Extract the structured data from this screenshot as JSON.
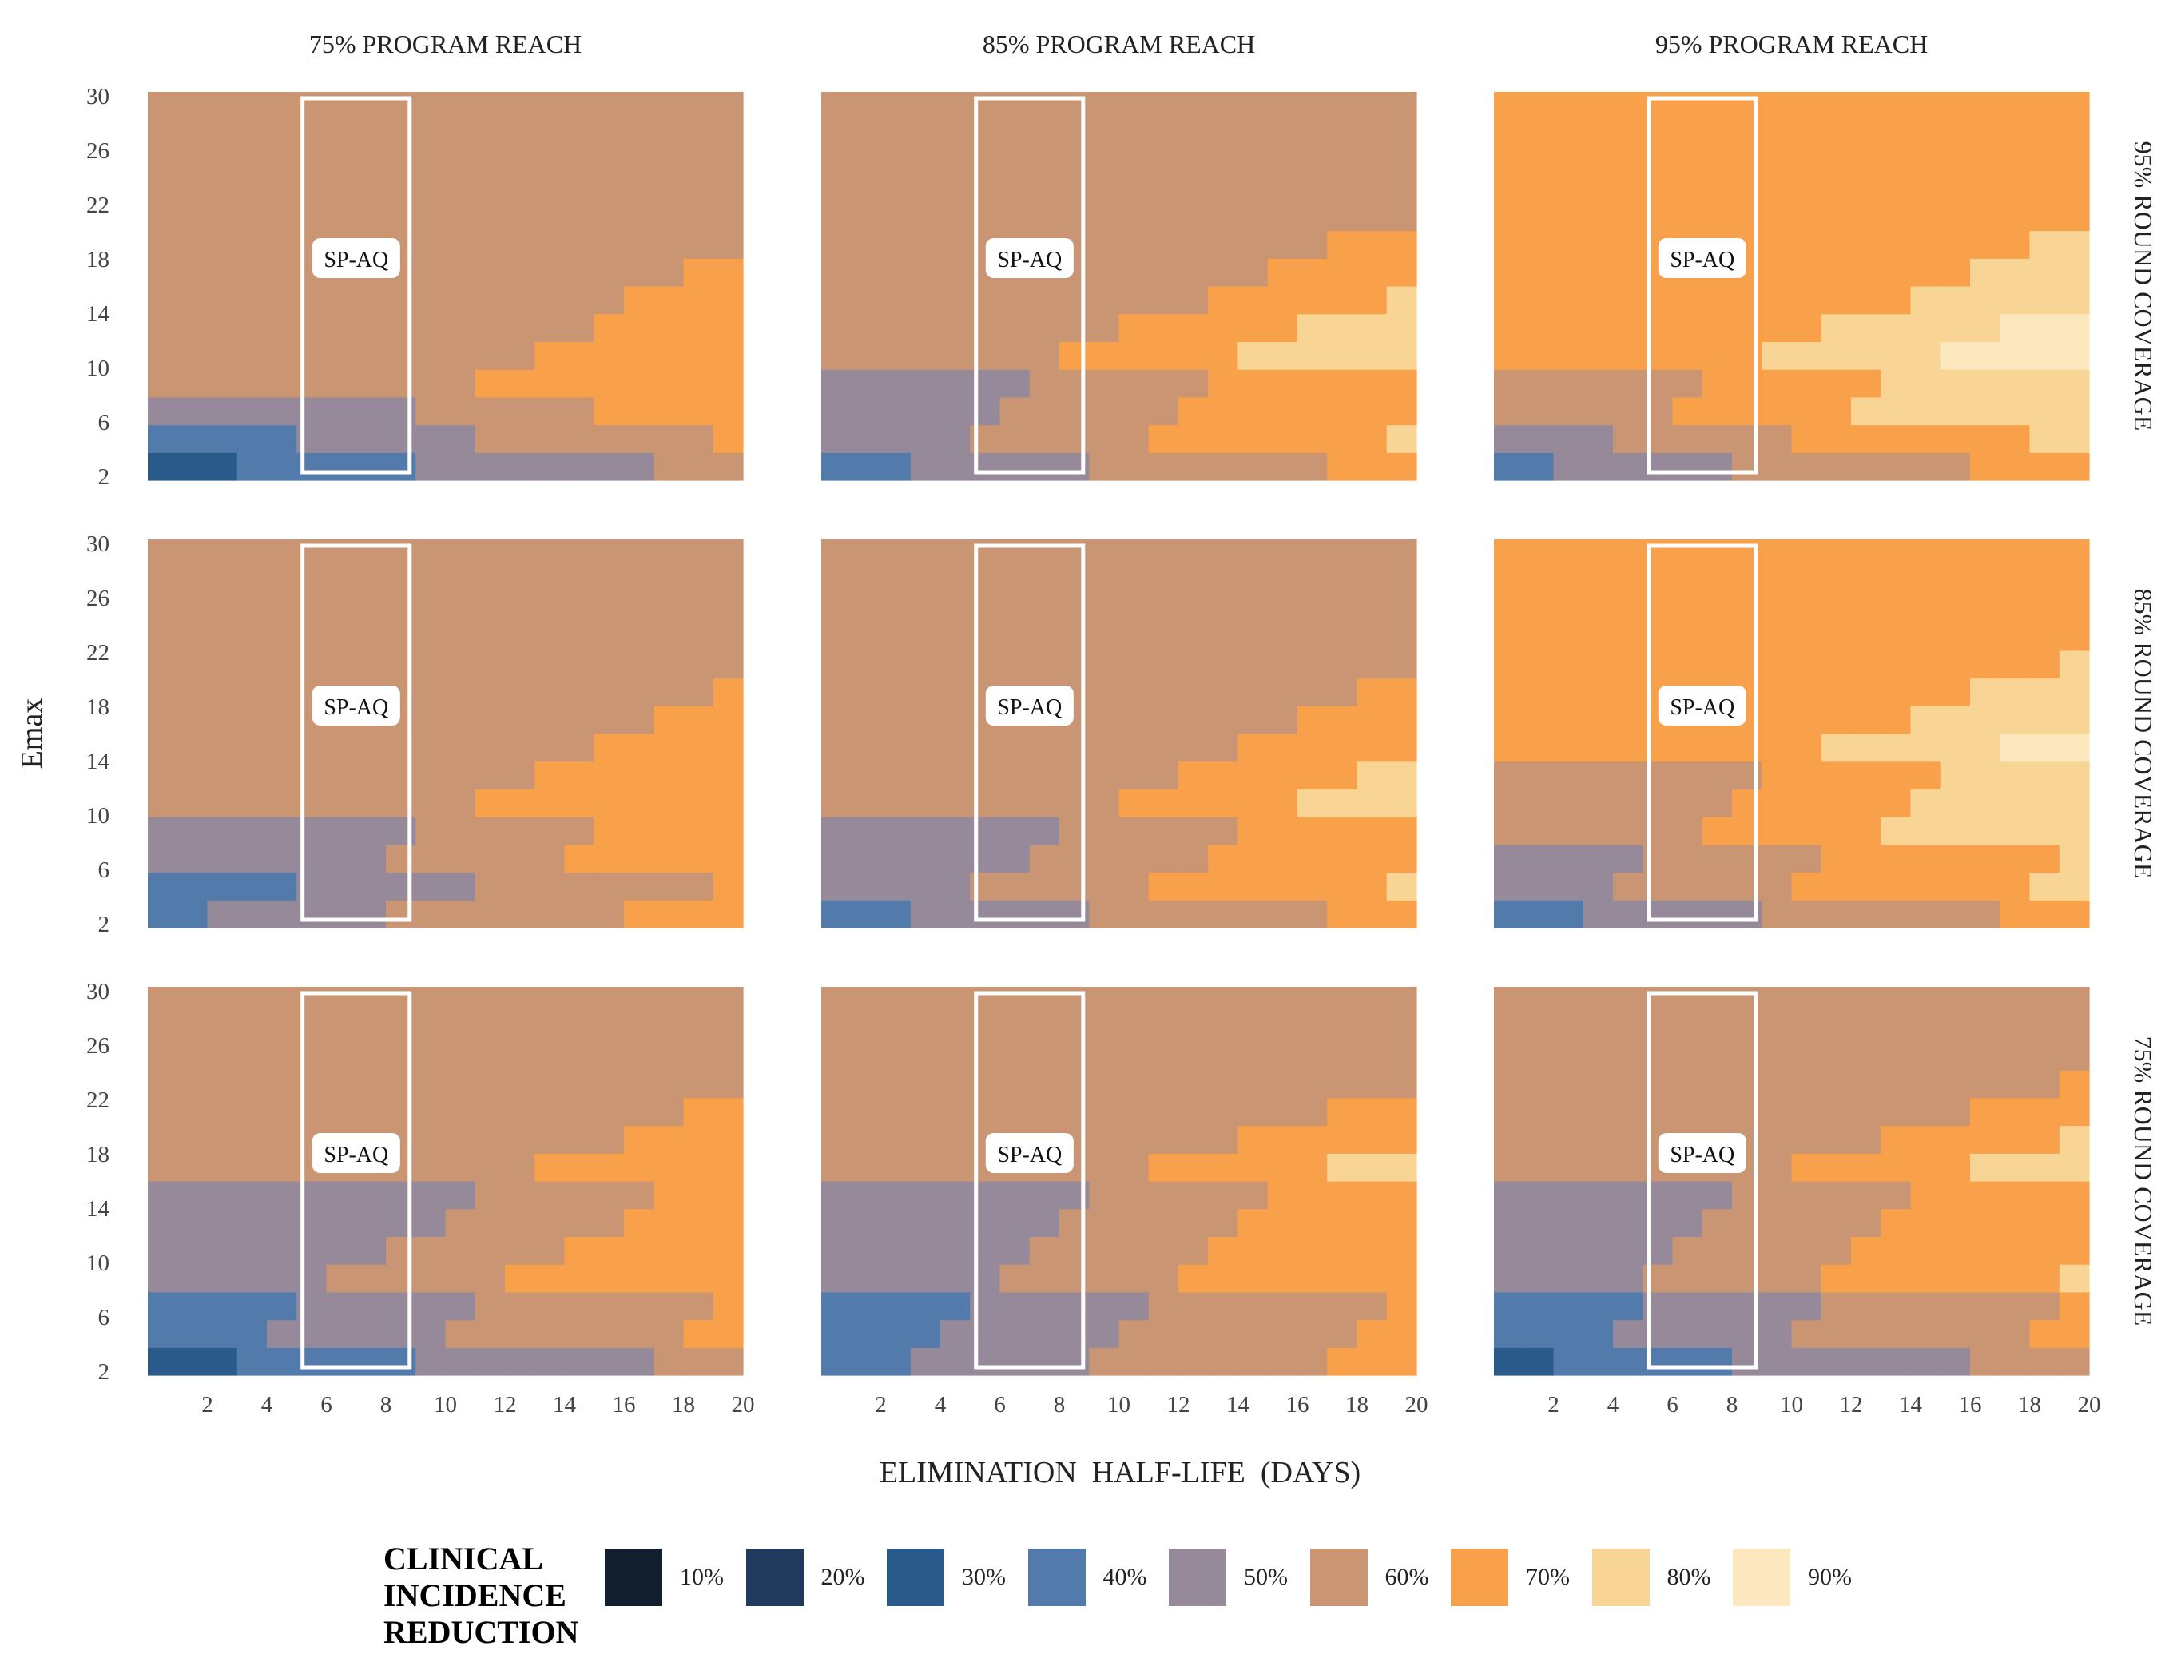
{
  "chart_data": {
    "type": "heatmap",
    "x_label": "ELIMINATION  HALF-LIFE  (DAYS)",
    "y_label": "Emax",
    "x_ticks": [
      2,
      4,
      6,
      8,
      10,
      12,
      14,
      16,
      18,
      20
    ],
    "y_ticks": [
      2,
      6,
      10,
      14,
      18,
      22,
      26,
      30
    ],
    "x_range": [
      0,
      20
    ],
    "y_range": [
      2,
      30
    ],
    "column_facets": [
      "75% PROGRAM REACH",
      "85% PROGRAM REACH",
      "95% PROGRAM REACH"
    ],
    "row_facets": [
      "95% ROUND COVERAGE",
      "85% ROUND COVERAGE",
      "75% ROUND COVERAGE"
    ],
    "annotation": {
      "label": "SP-AQ",
      "x_range": [
        5.2,
        8.8
      ],
      "y_range": [
        2,
        30
      ]
    },
    "legend": {
      "title_lines": [
        "CLINICAL",
        "INCIDENCE",
        "REDUCTION"
      ],
      "levels": [
        "10%",
        "20%",
        "30%",
        "40%",
        "50%",
        "60%",
        "70%",
        "80%",
        "90%"
      ],
      "colors": [
        "#111f2f",
        "#1f3a5c",
        "#2a5a8a",
        "#527bab",
        "#968a9a",
        "#c99572",
        "#f9a14a",
        "#f8d594",
        "#fce7be"
      ]
    },
    "panels": [
      {
        "row": 0,
        "col": 0,
        "thresholds": [
          [
            0,
            1,
            0.5
          ],
          [
            2,
            2,
            1.8
          ],
          [
            4,
            3,
            3.8
          ],
          [
            6,
            4,
            7
          ],
          [
            8,
            5,
            10
          ],
          [
            30,
            6,
            30
          ]
        ]
      },
      {
        "row": 0,
        "col": 1,
        "thresholds": [
          [
            0,
            1,
            0.5
          ],
          [
            2,
            3,
            1.6
          ],
          [
            4,
            4,
            4
          ],
          [
            10,
            5,
            7
          ],
          [
            30,
            6,
            30
          ]
        ]
      },
      {
        "row": 0,
        "col": 2,
        "thresholds": [
          [
            0,
            2,
            0.5
          ],
          [
            2,
            3,
            1.3
          ],
          [
            4,
            4,
            2.8
          ],
          [
            6,
            5,
            5
          ],
          [
            10,
            6,
            8
          ],
          [
            30,
            7,
            30
          ]
        ]
      },
      {
        "row": 1,
        "col": 0,
        "thresholds": [
          [
            0,
            2,
            0.8
          ],
          [
            2,
            3,
            1.2
          ],
          [
            4,
            3,
            3
          ],
          [
            6,
            4,
            7
          ],
          [
            10,
            5,
            10
          ],
          [
            30,
            5,
            30
          ]
        ]
      },
      {
        "row": 1,
        "col": 1,
        "thresholds": [
          [
            0,
            2,
            0.5
          ],
          [
            2,
            3,
            1.8
          ],
          [
            4,
            4,
            4.2
          ],
          [
            10,
            5,
            9
          ],
          [
            30,
            6,
            30
          ]
        ]
      },
      {
        "row": 1,
        "col": 2,
        "thresholds": [
          [
            0,
            2,
            0.5
          ],
          [
            2,
            3,
            1.4
          ],
          [
            4,
            4,
            3.8
          ],
          [
            8,
            5,
            6
          ],
          [
            14,
            6,
            10
          ],
          [
            30,
            7,
            30
          ]
        ]
      },
      {
        "row": 2,
        "col": 0,
        "thresholds": [
          [
            0,
            1,
            0.8
          ],
          [
            2,
            2,
            1.8
          ],
          [
            4,
            3,
            3.5
          ],
          [
            8,
            4,
            5.5
          ],
          [
            16,
            5,
            12
          ],
          [
            30,
            5,
            30
          ]
        ]
      },
      {
        "row": 2,
        "col": 1,
        "thresholds": [
          [
            0,
            2,
            0.6
          ],
          [
            2,
            3,
            1.8
          ],
          [
            4,
            3,
            3.8
          ],
          [
            8,
            4,
            6
          ],
          [
            16,
            5,
            9
          ],
          [
            30,
            5,
            30
          ]
        ]
      },
      {
        "row": 2,
        "col": 2,
        "thresholds": [
          [
            0,
            1,
            0.6
          ],
          [
            2,
            2,
            1.3
          ],
          [
            4,
            3,
            3.2
          ],
          [
            8,
            4,
            5
          ],
          [
            16,
            5,
            8.5
          ],
          [
            30,
            6,
            30
          ]
        ]
      }
    ]
  }
}
